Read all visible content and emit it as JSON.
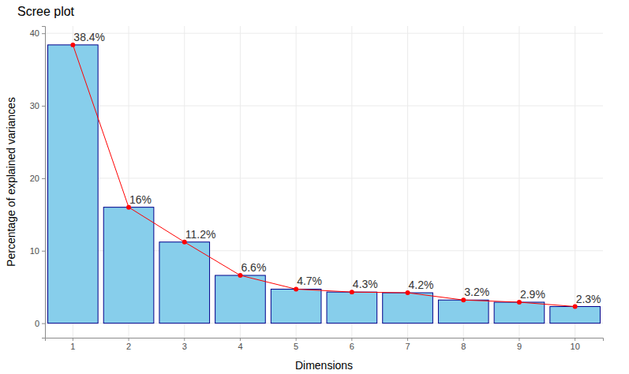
{
  "chart_data": {
    "type": "bar",
    "title": "Scree plot",
    "x_label": "Dimensions",
    "y_label": "Percentage of explained variances",
    "categories": [
      "1",
      "2",
      "3",
      "4",
      "5",
      "6",
      "7",
      "8",
      "9",
      "10"
    ],
    "values": [
      38.4,
      16,
      11.2,
      6.6,
      4.7,
      4.3,
      4.2,
      3.2,
      2.9,
      2.3
    ],
    "value_labels": [
      "38.4%",
      "16%",
      "11.2%",
      "6.6%",
      "4.7%",
      "4.3%",
      "4.2%",
      "3.2%",
      "2.9%",
      "2.3%"
    ],
    "color": "#87ceeb",
    "marker": "circle",
    "line_style": "solid",
    "data_labels": true,
    "grid": true,
    "ylim": [
      -2,
      41
    ],
    "yticks": [
      0,
      10,
      20,
      30,
      40
    ]
  }
}
